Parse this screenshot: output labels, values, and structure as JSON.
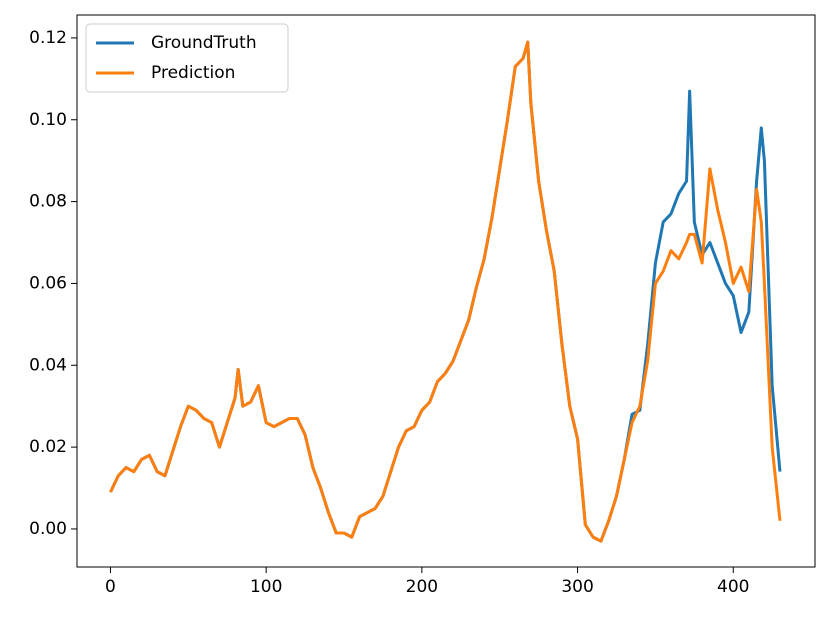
{
  "chart_data": {
    "type": "line",
    "x": [
      0,
      5,
      10,
      15,
      20,
      25,
      30,
      35,
      40,
      45,
      50,
      55,
      60,
      65,
      70,
      75,
      80,
      82,
      85,
      90,
      95,
      100,
      105,
      110,
      115,
      120,
      125,
      130,
      135,
      140,
      145,
      150,
      155,
      160,
      165,
      170,
      175,
      180,
      185,
      190,
      195,
      200,
      205,
      210,
      215,
      220,
      225,
      230,
      235,
      240,
      245,
      250,
      255,
      260,
      265,
      268,
      270,
      275,
      280,
      285,
      290,
      295,
      300,
      305,
      310,
      315,
      320,
      325,
      330,
      335,
      340,
      345,
      350,
      355,
      360,
      365,
      370,
      372,
      375,
      380,
      385,
      390,
      395,
      400,
      405,
      410,
      415,
      418,
      420,
      425,
      430
    ],
    "series": [
      {
        "name": "GroundTruth",
        "color": "#1f77b4",
        "values": [
          0.009,
          0.013,
          0.015,
          0.014,
          0.017,
          0.018,
          0.014,
          0.013,
          0.019,
          0.025,
          0.03,
          0.029,
          0.027,
          0.026,
          0.02,
          0.026,
          0.032,
          0.039,
          0.03,
          0.031,
          0.035,
          0.026,
          0.025,
          0.026,
          0.027,
          0.027,
          0.023,
          0.015,
          0.01,
          0.004,
          -0.001,
          -0.001,
          -0.002,
          0.003,
          0.004,
          0.005,
          0.008,
          0.014,
          0.02,
          0.024,
          0.025,
          0.029,
          0.031,
          0.036,
          0.038,
          0.041,
          0.046,
          0.051,
          0.059,
          0.066,
          0.076,
          0.088,
          0.1,
          0.113,
          0.115,
          0.119,
          0.104,
          0.085,
          0.073,
          0.063,
          0.045,
          0.03,
          0.022,
          0.001,
          -0.002,
          -0.003,
          0.002,
          0.008,
          0.017,
          0.028,
          0.029,
          0.045,
          0.065,
          0.075,
          0.077,
          0.082,
          0.085,
          0.107,
          0.075,
          0.067,
          0.07,
          0.065,
          0.06,
          0.057,
          0.048,
          0.053,
          0.085,
          0.098,
          0.09,
          0.035,
          0.014
        ]
      },
      {
        "name": "Prediction",
        "color": "#ff7f0e",
        "values": [
          0.009,
          0.013,
          0.015,
          0.014,
          0.017,
          0.018,
          0.014,
          0.013,
          0.019,
          0.025,
          0.03,
          0.029,
          0.027,
          0.026,
          0.02,
          0.026,
          0.032,
          0.039,
          0.03,
          0.031,
          0.035,
          0.026,
          0.025,
          0.026,
          0.027,
          0.027,
          0.023,
          0.015,
          0.01,
          0.004,
          -0.001,
          -0.001,
          -0.002,
          0.003,
          0.004,
          0.005,
          0.008,
          0.014,
          0.02,
          0.024,
          0.025,
          0.029,
          0.031,
          0.036,
          0.038,
          0.041,
          0.046,
          0.051,
          0.059,
          0.066,
          0.076,
          0.088,
          0.1,
          0.113,
          0.115,
          0.119,
          0.104,
          0.085,
          0.073,
          0.063,
          0.045,
          0.03,
          0.022,
          0.001,
          -0.002,
          -0.003,
          0.002,
          0.008,
          0.017,
          0.026,
          0.03,
          0.041,
          0.06,
          0.063,
          0.068,
          0.066,
          0.07,
          0.072,
          0.072,
          0.065,
          0.088,
          0.078,
          0.07,
          0.06,
          0.064,
          0.058,
          0.083,
          0.075,
          0.06,
          0.02,
          0.002
        ]
      }
    ],
    "xlim": [
      -21.5,
      452.5
    ],
    "xticks": [
      0,
      100,
      200,
      300,
      400
    ],
    "ylim": [
      -0.0093,
      0.1256
    ],
    "yticks": [
      {
        "value": 0,
        "label": "0.00"
      },
      {
        "value": 0.02,
        "label": "0.02"
      },
      {
        "value": 0.04,
        "label": "0.04"
      },
      {
        "value": 0.06,
        "label": "0.06"
      },
      {
        "value": 0.08,
        "label": "0.08"
      },
      {
        "value": 0.1,
        "label": "0.10"
      },
      {
        "value": 0.12,
        "label": "0.12"
      }
    ],
    "legend": "upper left"
  }
}
